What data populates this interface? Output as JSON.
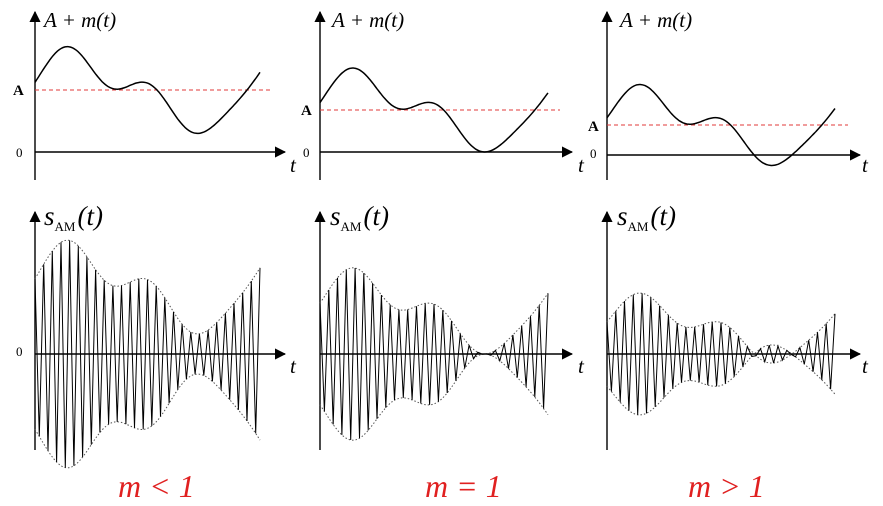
{
  "labels": {
    "top_ylabel": "A + m(t)",
    "bottom_ylabel_main": "s",
    "bottom_ylabel_sub": "AM",
    "bottom_ylabel_arg": "(t)",
    "t_label": "t",
    "a_label": "A",
    "zero_label": "0"
  },
  "colors": {
    "axis": "#000000",
    "a_level_line": "#e03a3a",
    "condition_text": "#e02020"
  },
  "panels": [
    {
      "condition": "m < 1"
    },
    {
      "condition": "m = 1"
    },
    {
      "condition": "m > 1"
    }
  ]
}
